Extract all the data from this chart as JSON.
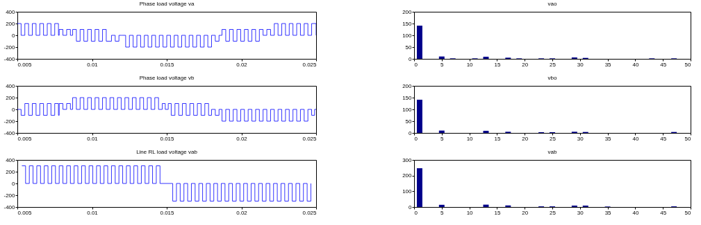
{
  "chart_data": [
    {
      "type": "step",
      "title": "Phase load voltage va",
      "xlim": [
        0.005,
        0.025
      ],
      "ylim": [
        -400,
        400
      ],
      "xticks": [
        0.005,
        0.01,
        0.015,
        0.02,
        0.025
      ],
      "yticks": [
        -400,
        -200,
        0,
        200,
        400
      ],
      "grid": false,
      "x": [
        0.005,
        0.00525,
        0.0055,
        0.00575,
        0.006,
        0.00625,
        0.0065,
        0.00675,
        0.007,
        0.00725,
        0.0075,
        0.00775,
        0.0078,
        0.00805,
        0.0083,
        0.00855,
        0.0087,
        0.00895,
        0.0092,
        0.00945,
        0.0097,
        0.00995,
        0.0102,
        0.01045,
        0.0107,
        0.01095,
        0.0113,
        0.01155,
        0.0118,
        0.012,
        0.01225,
        0.0125,
        0.01275,
        0.013,
        0.01325,
        0.0135,
        0.01375,
        0.014,
        0.01425,
        0.0145,
        0.01475,
        0.015,
        0.01525,
        0.0155,
        0.01575,
        0.016,
        0.01625,
        0.0165,
        0.01675,
        0.017,
        0.01725,
        0.0175,
        0.01775,
        0.018,
        0.01825,
        0.0185,
        0.0187,
        0.01895,
        0.0192,
        0.01945,
        0.0197,
        0.01995,
        0.0202,
        0.02045,
        0.0207,
        0.02095,
        0.0212,
        0.02145,
        0.0217,
        0.02195,
        0.0222,
        0.02245,
        0.0227,
        0.02295,
        0.0232,
        0.02345,
        0.0237,
        0.02395,
        0.0242,
        0.02445,
        0.0247,
        0.025
      ],
      "series": [
        {
          "color": "#0000ff",
          "values": [
            200,
            0,
            200,
            0,
            200,
            0,
            200,
            0,
            200,
            0,
            200,
            0,
            100,
            0,
            100,
            0,
            100,
            -100,
            100,
            -100,
            100,
            -100,
            100,
            -100,
            100,
            -100,
            0,
            -100,
            0,
            0,
            -200,
            0,
            -200,
            0,
            -200,
            0,
            -200,
            0,
            -200,
            0,
            -200,
            0,
            -200,
            0,
            -200,
            0,
            -200,
            0,
            -200,
            0,
            -200,
            0,
            -200,
            0,
            -100,
            0,
            100,
            -100,
            100,
            -100,
            100,
            -100,
            100,
            -100,
            100,
            -100,
            100,
            0,
            100,
            0,
            200,
            0,
            200,
            0,
            200,
            0,
            200,
            0,
            200,
            0,
            200,
            0
          ]
        }
      ]
    },
    {
      "type": "bar",
      "title": "vao",
      "xlim": [
        0,
        50
      ],
      "ylim": [
        0,
        200
      ],
      "xticks": [
        0,
        5,
        10,
        15,
        20,
        25,
        30,
        35,
        40,
        45,
        50
      ],
      "yticks": [
        0,
        50,
        100,
        150,
        200
      ],
      "grid": false,
      "x": [
        1,
        5,
        7,
        11,
        13,
        17,
        19,
        23,
        25,
        29,
        31,
        43,
        47
      ],
      "series": [
        {
          "color": "#00008b",
          "values": [
            141,
            10,
            2,
            2,
            9,
            5,
            2,
            2,
            2,
            6,
            4,
            2,
            2
          ]
        }
      ]
    },
    {
      "type": "step",
      "title": "Phase load voltage vb",
      "xlim": [
        0.005,
        0.025
      ],
      "ylim": [
        -400,
        400
      ],
      "xticks": [
        0.005,
        0.01,
        0.015,
        0.02,
        0.025
      ],
      "yticks": [
        -400,
        -200,
        0,
        200,
        400
      ],
      "grid": false,
      "x": [
        0.005,
        0.00525,
        0.0055,
        0.00575,
        0.006,
        0.00625,
        0.0065,
        0.00675,
        0.007,
        0.00725,
        0.0075,
        0.00775,
        0.0078,
        0.00805,
        0.0083,
        0.00855,
        0.0087,
        0.00895,
        0.0092,
        0.00945,
        0.0097,
        0.00995,
        0.0102,
        0.01045,
        0.0107,
        0.01095,
        0.0112,
        0.01145,
        0.0117,
        0.01195,
        0.0122,
        0.01245,
        0.0127,
        0.01295,
        0.0132,
        0.01345,
        0.0137,
        0.01395,
        0.0142,
        0.01445,
        0.0147,
        0.0149,
        0.0151,
        0.0153,
        0.01555,
        0.0158,
        0.01605,
        0.0163,
        0.01655,
        0.0168,
        0.01705,
        0.0173,
        0.01755,
        0.0178,
        0.018,
        0.01825,
        0.0185,
        0.0187,
        0.01895,
        0.0192,
        0.01945,
        0.0197,
        0.01995,
        0.0202,
        0.02045,
        0.0207,
        0.02095,
        0.0212,
        0.02145,
        0.0217,
        0.02195,
        0.0222,
        0.02245,
        0.0227,
        0.02295,
        0.0232,
        0.02345,
        0.0237,
        0.02395,
        0.0242,
        0.02445,
        0.0247,
        0.0249,
        0.025
      ],
      "series": [
        {
          "color": "#0000ff",
          "values": [
            0,
            -100,
            100,
            -100,
            100,
            -100,
            100,
            -100,
            100,
            -100,
            100,
            -100,
            100,
            0,
            100,
            0,
            200,
            0,
            200,
            0,
            200,
            0,
            200,
            0,
            200,
            0,
            200,
            0,
            200,
            0,
            200,
            0,
            200,
            0,
            200,
            0,
            200,
            0,
            200,
            0,
            100,
            0,
            100,
            -100,
            100,
            -100,
            100,
            -100,
            100,
            -100,
            100,
            -100,
            100,
            -100,
            0,
            -100,
            0,
            -200,
            0,
            -200,
            0,
            -200,
            0,
            -200,
            0,
            -200,
            0,
            -200,
            0,
            -200,
            0,
            -200,
            0,
            -200,
            0,
            -200,
            0,
            -200,
            0,
            -200,
            0,
            -100,
            0,
            0
          ]
        }
      ]
    },
    {
      "type": "bar",
      "title": "vbo",
      "xlim": [
        0,
        50
      ],
      "ylim": [
        0,
        200
      ],
      "xticks": [
        0,
        5,
        10,
        15,
        20,
        25,
        30,
        35,
        40,
        45,
        50
      ],
      "yticks": [
        0,
        50,
        100,
        150,
        200
      ],
      "grid": false,
      "x": [
        1,
        5,
        13,
        17,
        23,
        25,
        29,
        31,
        47
      ],
      "series": [
        {
          "color": "#00008b",
          "values": [
            141,
            10,
            9,
            5,
            3,
            3,
            5,
            4,
            4
          ]
        }
      ]
    },
    {
      "type": "step",
      "title": "Line RL load voltage vab",
      "xlim": [
        0.005,
        0.025
      ],
      "ylim": [
        -400,
        400
      ],
      "xticks": [
        0.005,
        0.01,
        0.015,
        0.02,
        0.025
      ],
      "yticks": [
        -400,
        -200,
        0,
        200,
        400
      ],
      "grid": false,
      "x": [
        0.0053,
        0.00555,
        0.0058,
        0.00605,
        0.0063,
        0.00655,
        0.0068,
        0.00705,
        0.0073,
        0.00755,
        0.0078,
        0.00805,
        0.0083,
        0.00855,
        0.0088,
        0.00905,
        0.0093,
        0.00955,
        0.0098,
        0.01005,
        0.0103,
        0.01055,
        0.0108,
        0.01105,
        0.0113,
        0.01155,
        0.0118,
        0.01205,
        0.0123,
        0.01255,
        0.0128,
        0.01305,
        0.0133,
        0.01355,
        0.0138,
        0.01405,
        0.0143,
        0.01455,
        0.0154,
        0.01565,
        0.0159,
        0.01615,
        0.0164,
        0.01665,
        0.0169,
        0.01715,
        0.0174,
        0.01765,
        0.0179,
        0.01815,
        0.0184,
        0.01865,
        0.0189,
        0.01915,
        0.0194,
        0.01965,
        0.0199,
        0.02015,
        0.0204,
        0.02065,
        0.0209,
        0.02115,
        0.0214,
        0.02165,
        0.0219,
        0.02215,
        0.0224,
        0.02265,
        0.0229,
        0.02315,
        0.0234,
        0.02365,
        0.0239,
        0.02415,
        0.0244,
        0.02465
      ],
      "series": [
        {
          "color": "#0000ff",
          "values": [
            300,
            0,
            300,
            0,
            300,
            0,
            300,
            0,
            300,
            0,
            300,
            0,
            300,
            0,
            300,
            0,
            300,
            0,
            300,
            0,
            300,
            0,
            300,
            0,
            300,
            0,
            300,
            0,
            300,
            0,
            300,
            0,
            300,
            0,
            300,
            0,
            300,
            0,
            -300,
            0,
            -300,
            0,
            -300,
            0,
            -300,
            0,
            -300,
            0,
            -300,
            0,
            -300,
            0,
            -300,
            0,
            -300,
            0,
            -300,
            0,
            -300,
            0,
            -300,
            0,
            -300,
            0,
            -300,
            0,
            -300,
            0,
            -300,
            0,
            -300,
            0,
            -300,
            0,
            -300,
            0
          ]
        }
      ]
    },
    {
      "type": "bar",
      "title": "vab",
      "xlim": [
        0,
        50
      ],
      "ylim": [
        0,
        300
      ],
      "xticks": [
        0,
        5,
        10,
        15,
        20,
        25,
        30,
        35,
        40,
        45,
        50
      ],
      "yticks": [
        0,
        100,
        200,
        300
      ],
      "grid": false,
      "x": [
        1,
        5,
        13,
        17,
        23,
        25,
        29,
        31,
        35,
        47
      ],
      "series": [
        {
          "color": "#00008b",
          "values": [
            247,
            14,
            15,
            10,
            4,
            4,
            9,
            9,
            3,
            4
          ]
        }
      ]
    }
  ]
}
